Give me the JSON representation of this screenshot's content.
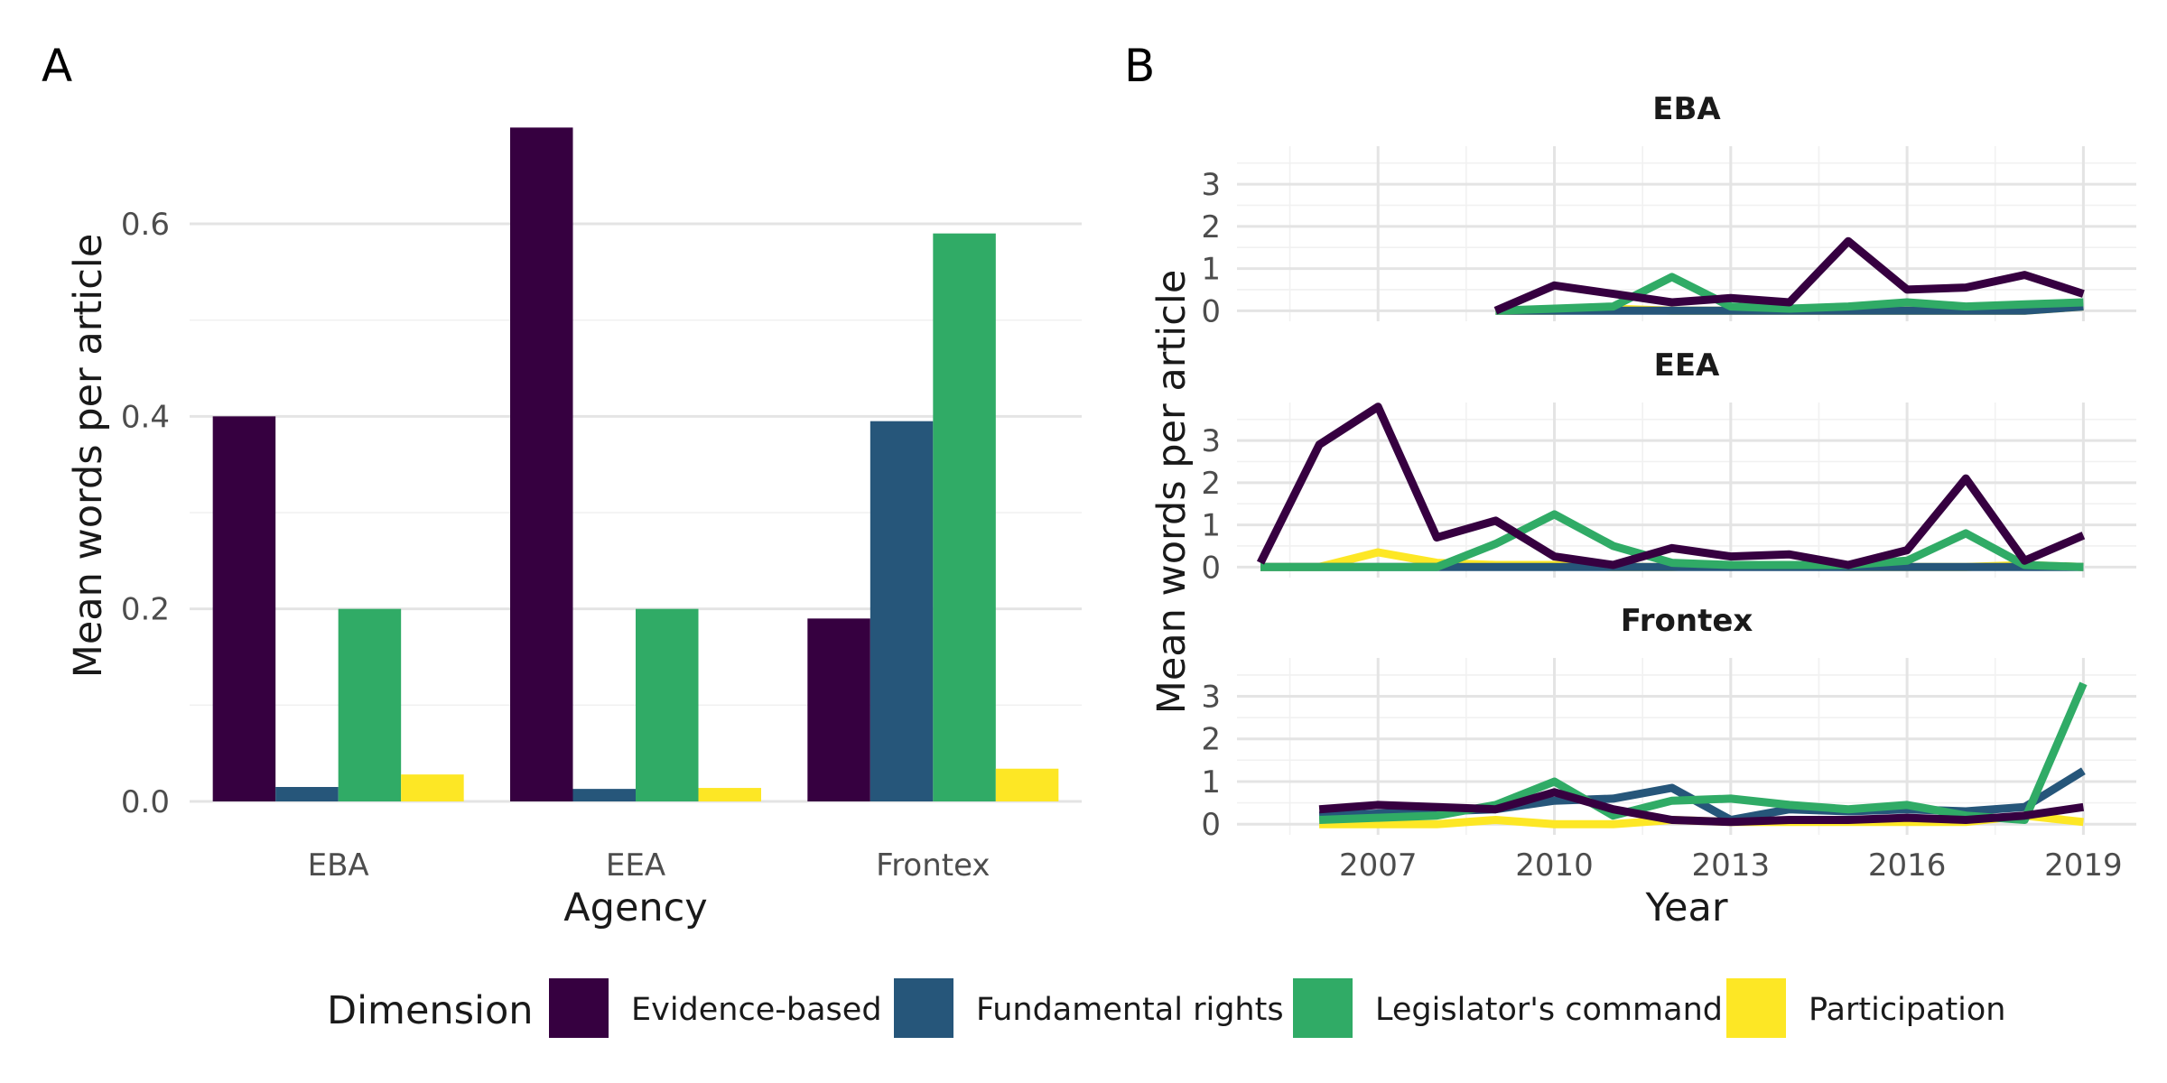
{
  "panels": {
    "a_tag": "A",
    "b_tag": "B"
  },
  "legend": {
    "title": "Dimension",
    "position": "bottom"
  },
  "colors": {
    "Evidence-based": "#360040",
    "Fundamental rights": "#26567a",
    "Legislator's command": "#30ab66",
    "Participation": "#fde725"
  },
  "chart_data": [
    {
      "type": "bar",
      "panel": "A",
      "xlabel": "Agency",
      "ylabel": "Mean words per article",
      "categories": [
        "EBA",
        "EEA",
        "Frontex"
      ],
      "ylim": [
        0,
        0.72
      ],
      "yticks": [
        0.0,
        0.2,
        0.4,
        0.6
      ],
      "ytick_labels": [
        "0.0",
        "0.2",
        "0.4",
        "0.6"
      ],
      "series": [
        {
          "name": "Evidence-based",
          "values": [
            0.4,
            0.7,
            0.19
          ]
        },
        {
          "name": "Fundamental rights",
          "values": [
            0.015,
            0.013,
            0.395
          ]
        },
        {
          "name": "Legislator's command",
          "values": [
            0.2,
            0.2,
            0.59
          ]
        },
        {
          "name": "Participation",
          "values": [
            0.028,
            0.014,
            0.034
          ]
        }
      ],
      "grid": true
    },
    {
      "type": "line",
      "panel": "B",
      "xlabel": "Year",
      "ylabel": "Mean words per article",
      "xlim": [
        2004.6,
        2019.9
      ],
      "xticks": [
        2007,
        2010,
        2013,
        2016,
        2019
      ],
      "xtick_labels": [
        "2007",
        "2010",
        "2013",
        "2016",
        "2019"
      ],
      "ylim": [
        -0.25,
        3.9
      ],
      "yticks": [
        0,
        1,
        2,
        3
      ],
      "ytick_labels": [
        "0",
        "1",
        "2",
        "3"
      ],
      "grid": true,
      "facets": [
        {
          "title": "EBA",
          "series": [
            {
              "name": "Evidence-based",
              "x": [
                2009,
                2010,
                2011,
                2012,
                2013,
                2014,
                2015,
                2016,
                2017,
                2018,
                2019
              ],
              "y": [
                0.0,
                0.6,
                0.4,
                0.2,
                0.3,
                0.2,
                1.65,
                0.5,
                0.55,
                0.85,
                0.4
              ]
            },
            {
              "name": "Fundamental rights",
              "x": [
                2009,
                2010,
                2011,
                2012,
                2013,
                2014,
                2015,
                2016,
                2017,
                2018,
                2019
              ],
              "y": [
                0.0,
                0.0,
                0.0,
                0.0,
                0.0,
                0.0,
                0.0,
                0.0,
                0.0,
                0.0,
                0.1
              ]
            },
            {
              "name": "Legislator's command",
              "x": [
                2009,
                2010,
                2011,
                2012,
                2013,
                2014,
                2015,
                2016,
                2017,
                2018,
                2019
              ],
              "y": [
                0.0,
                0.05,
                0.1,
                0.8,
                0.1,
                0.05,
                0.1,
                0.2,
                0.1,
                0.15,
                0.2
              ]
            },
            {
              "name": "Participation",
              "x": [
                2009,
                2010,
                2011,
                2012,
                2013,
                2014,
                2015,
                2016,
                2017,
                2018,
                2019
              ],
              "y": [
                0.0,
                0.0,
                0.05,
                0.0,
                0.0,
                0.0,
                0.0,
                0.0,
                0.0,
                0.0,
                0.1
              ]
            }
          ]
        },
        {
          "title": "EEA",
          "series": [
            {
              "name": "Evidence-based",
              "x": [
                2005,
                2006,
                2007,
                2008,
                2009,
                2010,
                2011,
                2012,
                2013,
                2014,
                2015,
                2016,
                2017,
                2018,
                2019
              ],
              "y": [
                0.1,
                2.9,
                3.8,
                0.7,
                1.1,
                0.25,
                0.05,
                0.45,
                0.25,
                0.3,
                0.05,
                0.4,
                2.1,
                0.15,
                0.75
              ]
            },
            {
              "name": "Fundamental rights",
              "x": [
                2005,
                2006,
                2007,
                2008,
                2009,
                2010,
                2011,
                2012,
                2013,
                2014,
                2015,
                2016,
                2017,
                2018,
                2019
              ],
              "y": [
                0.0,
                0.0,
                0.0,
                0.0,
                0.0,
                0.0,
                0.0,
                0.0,
                0.0,
                0.0,
                0.0,
                0.0,
                0.0,
                0.0,
                0.0
              ]
            },
            {
              "name": "Legislator's command",
              "x": [
                2005,
                2006,
                2007,
                2008,
                2009,
                2010,
                2011,
                2012,
                2013,
                2014,
                2015,
                2016,
                2017,
                2018,
                2019
              ],
              "y": [
                0.0,
                0.0,
                0.0,
                0.0,
                0.55,
                1.25,
                0.5,
                0.1,
                0.05,
                0.05,
                0.05,
                0.15,
                0.8,
                0.05,
                0.0
              ]
            },
            {
              "name": "Participation",
              "x": [
                2005,
                2006,
                2007,
                2008,
                2009,
                2010,
                2011,
                2012,
                2013,
                2014,
                2015,
                2016,
                2017,
                2018,
                2019
              ],
              "y": [
                0.0,
                0.0,
                0.35,
                0.1,
                0.05,
                0.05,
                0.0,
                0.0,
                0.05,
                0.05,
                0.0,
                0.0,
                0.0,
                0.05,
                0.0
              ]
            }
          ]
        },
        {
          "title": "Frontex",
          "series": [
            {
              "name": "Evidence-based",
              "x": [
                2006,
                2007,
                2008,
                2009,
                2010,
                2011,
                2012,
                2013,
                2014,
                2015,
                2016,
                2017,
                2018,
                2019
              ],
              "y": [
                0.35,
                0.45,
                0.4,
                0.35,
                0.75,
                0.35,
                0.1,
                0.05,
                0.1,
                0.1,
                0.15,
                0.1,
                0.2,
                0.4
              ]
            },
            {
              "name": "Fundamental rights",
              "x": [
                2006,
                2007,
                2008,
                2009,
                2010,
                2011,
                2012,
                2013,
                2014,
                2015,
                2016,
                2017,
                2018,
                2019
              ],
              "y": [
                0.2,
                0.25,
                0.3,
                0.35,
                0.55,
                0.6,
                0.85,
                0.1,
                0.35,
                0.3,
                0.35,
                0.3,
                0.4,
                1.25
              ]
            },
            {
              "name": "Legislator's command",
              "x": [
                2006,
                2007,
                2008,
                2009,
                2010,
                2011,
                2012,
                2013,
                2014,
                2015,
                2016,
                2017,
                2018,
                2019
              ],
              "y": [
                0.1,
                0.15,
                0.2,
                0.45,
                1.0,
                0.2,
                0.55,
                0.6,
                0.45,
                0.35,
                0.45,
                0.2,
                0.1,
                3.3
              ]
            },
            {
              "name": "Participation",
              "x": [
                2006,
                2007,
                2008,
                2009,
                2010,
                2011,
                2012,
                2013,
                2014,
                2015,
                2016,
                2017,
                2018,
                2019
              ],
              "y": [
                0.0,
                0.0,
                0.0,
                0.1,
                0.0,
                0.0,
                0.1,
                0.05,
                0.05,
                0.05,
                0.05,
                0.05,
                0.2,
                0.05
              ]
            }
          ]
        }
      ]
    }
  ]
}
